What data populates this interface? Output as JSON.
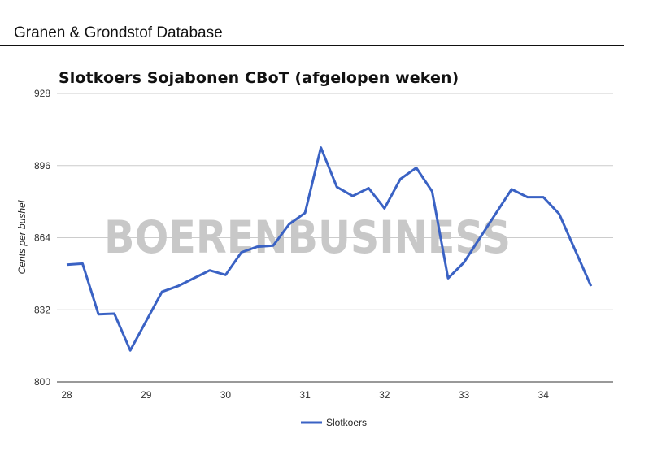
{
  "header": {
    "title": "Granen & Grondstof Database"
  },
  "watermark": "BOERENBUSINESS",
  "colors": {
    "line": "#3a62c4",
    "grid": "#cccccc",
    "watermark": "#c8c8c8"
  },
  "chart_data": {
    "type": "line",
    "title": "Slotkoers Sojabonen CBoT (afgelopen weken)",
    "xlabel": "",
    "ylabel": "Cents per bushel",
    "xlim": [
      28,
      34.9
    ],
    "ylim": [
      800,
      928
    ],
    "xticks": [
      28,
      29,
      30,
      31,
      32,
      33,
      34
    ],
    "yticks": [
      800,
      832,
      864,
      896,
      928
    ],
    "grid": true,
    "legend_position": "bottom",
    "series": [
      {
        "name": "Slotkoers",
        "x": [
          28.0,
          28.2,
          28.4,
          28.6,
          28.8,
          29.2,
          29.4,
          29.8,
          30.0,
          30.2,
          30.4,
          30.6,
          30.8,
          31.0,
          31.2,
          31.4,
          31.6,
          31.8,
          32.0,
          32.2,
          32.4,
          32.6,
          32.8,
          33.0,
          33.6,
          33.8,
          34.0,
          34.2,
          34.6
        ],
        "y": [
          852,
          852.5,
          830,
          830.3,
          814,
          840,
          842.5,
          849.5,
          847.5,
          857.5,
          860,
          860.5,
          870,
          875,
          904,
          886.5,
          882.5,
          886,
          877,
          890,
          895,
          884.5,
          846,
          853,
          885.5,
          882,
          882,
          874.5,
          842.5
        ]
      }
    ]
  }
}
